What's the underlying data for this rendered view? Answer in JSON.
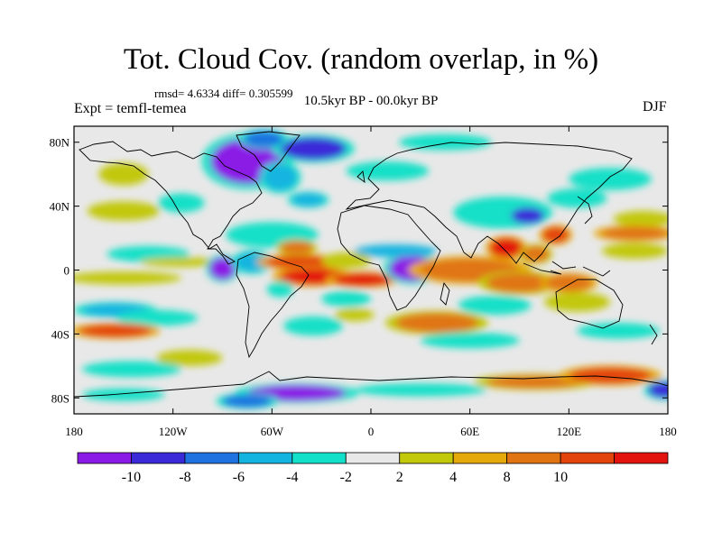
{
  "title": "Tot. Cloud Cov. (random overlap, in %)",
  "stats": "rmsd= 4.6334 diff= 0.305599",
  "experiment": "Expt = temfl-temea",
  "period": "10.5kyr BP - 00.0kyr BP",
  "season": "DJF",
  "x_axis": {
    "ticks": [
      -180,
      -120,
      -60,
      0,
      60,
      120,
      180
    ],
    "labels": [
      "180",
      "120W",
      "60W",
      "0",
      "60E",
      "120E",
      "180"
    ]
  },
  "y_axis": {
    "ticks": [
      80,
      40,
      0,
      -40,
      -80
    ],
    "labels": [
      "80N",
      "40N",
      "0",
      "40S",
      "80S"
    ],
    "range": [
      -90,
      90
    ]
  },
  "colorbar": {
    "colors": [
      "#8b1ae6",
      "#3b2ad8",
      "#1f72e0",
      "#13b4e0",
      "#13e0c8",
      "#e8e8e8",
      "#c2c80a",
      "#e6a90b",
      "#e07412",
      "#e3440c",
      "#e3130e"
    ],
    "labels": [
      "-10",
      "-8",
      "-6",
      "-4",
      "-2",
      "2",
      "4",
      "8",
      "10"
    ]
  },
  "field_anomalies": [
    {
      "lon": -75,
      "lat": 68,
      "rx": 22,
      "ry": 14,
      "v": -11
    },
    {
      "lon": -55,
      "lat": 58,
      "rx": 10,
      "ry": 8,
      "v": -6
    },
    {
      "lon": -35,
      "lat": 76,
      "rx": 20,
      "ry": 7,
      "v": -9
    },
    {
      "lon": -65,
      "lat": 82,
      "rx": 12,
      "ry": 5,
      "v": -8
    },
    {
      "lon": -38,
      "lat": 44,
      "rx": 10,
      "ry": 4,
      "v": -6
    },
    {
      "lon": -115,
      "lat": 42,
      "rx": 14,
      "ry": 6,
      "v": -4
    },
    {
      "lon": -150,
      "lat": 60,
      "rx": 15,
      "ry": 7,
      "v": 3
    },
    {
      "lon": -150,
      "lat": 37,
      "rx": 22,
      "ry": 6,
      "v": 3
    },
    {
      "lon": -135,
      "lat": 10,
      "rx": 25,
      "ry": 5,
      "v": -3
    },
    {
      "lon": -60,
      "lat": 22,
      "rx": 28,
      "ry": 8,
      "v": -3
    },
    {
      "lon": 10,
      "lat": 62,
      "rx": 25,
      "ry": 6,
      "v": -3
    },
    {
      "lon": 45,
      "lat": 80,
      "rx": 28,
      "ry": 5,
      "v": -3
    },
    {
      "lon": 80,
      "lat": 36,
      "rx": 30,
      "ry": 10,
      "v": -4
    },
    {
      "lon": 95,
      "lat": 34,
      "rx": 10,
      "ry": 5,
      "v": -9
    },
    {
      "lon": 125,
      "lat": 45,
      "rx": 18,
      "ry": 6,
      "v": -4
    },
    {
      "lon": 145,
      "lat": 57,
      "rx": 25,
      "ry": 7,
      "v": -3
    },
    {
      "lon": 165,
      "lat": 32,
      "rx": 18,
      "ry": 5,
      "v": 3
    },
    {
      "lon": 160,
      "lat": 12,
      "rx": 20,
      "ry": 5,
      "v": 3
    },
    {
      "lon": -150,
      "lat": -5,
      "rx": 35,
      "ry": 4,
      "v": 3
    },
    {
      "lon": -115,
      "lat": 5,
      "rx": 25,
      "ry": 3,
      "v": 3
    },
    {
      "lon": -90,
      "lat": 1,
      "rx": 8,
      "ry": 7,
      "v": -11
    },
    {
      "lon": -72,
      "lat": 5,
      "rx": 10,
      "ry": 6,
      "v": -6
    },
    {
      "lon": -42,
      "lat": 5,
      "rx": 22,
      "ry": 4,
      "v": 8
    },
    {
      "lon": -15,
      "lat": 6,
      "rx": 15,
      "ry": 5,
      "v": 3
    },
    {
      "lon": -45,
      "lat": 14,
      "rx": 10,
      "ry": 4,
      "v": 6
    },
    {
      "lon": -35,
      "lat": -4,
      "rx": 20,
      "ry": 5,
      "v": 10
    },
    {
      "lon": -5,
      "lat": -6,
      "rx": 18,
      "ry": 4,
      "v": 11
    },
    {
      "lon": 25,
      "lat": 1,
      "rx": 14,
      "ry": 8,
      "v": -11
    },
    {
      "lon": 15,
      "lat": 12,
      "rx": 25,
      "ry": 4,
      "v": -5
    },
    {
      "lon": -15,
      "lat": -18,
      "rx": 15,
      "ry": 5,
      "v": -4
    },
    {
      "lon": -10,
      "lat": -28,
      "rx": 12,
      "ry": 4,
      "v": 3
    },
    {
      "lon": -55,
      "lat": -12,
      "rx": 8,
      "ry": 5,
      "v": -4
    },
    {
      "lon": 60,
      "lat": 0,
      "rx": 30,
      "ry": 7,
      "v": 7
    },
    {
      "lon": 82,
      "lat": 14,
      "rx": 10,
      "ry": 6,
      "v": 10
    },
    {
      "lon": 100,
      "lat": 10,
      "rx": 8,
      "ry": 5,
      "v": 6
    },
    {
      "lon": 112,
      "lat": 22,
      "rx": 8,
      "ry": 5,
      "v": 9
    },
    {
      "lon": 160,
      "lat": 23,
      "rx": 20,
      "ry": 4,
      "v": 7
    },
    {
      "lon": 90,
      "lat": -8,
      "rx": 20,
      "ry": 6,
      "v": 6
    },
    {
      "lon": 120,
      "lat": -8,
      "rx": 14,
      "ry": 5,
      "v": 7
    },
    {
      "lon": 75,
      "lat": -22,
      "rx": 22,
      "ry": 6,
      "v": -4
    },
    {
      "lon": 125,
      "lat": -20,
      "rx": 20,
      "ry": 6,
      "v": 3
    },
    {
      "lon": 40,
      "lat": -33,
      "rx": 25,
      "ry": 6,
      "v": 6
    },
    {
      "lon": 60,
      "lat": -44,
      "rx": 30,
      "ry": 5,
      "v": -3
    },
    {
      "lon": 150,
      "lat": -38,
      "rx": 25,
      "ry": 5,
      "v": -3
    },
    {
      "lon": -155,
      "lat": -25,
      "rx": 20,
      "ry": 4,
      "v": -6
    },
    {
      "lon": -130,
      "lat": -30,
      "rx": 25,
      "ry": 5,
      "v": -3
    },
    {
      "lon": -155,
      "lat": -38,
      "rx": 22,
      "ry": 4,
      "v": 9
    },
    {
      "lon": -110,
      "lat": -55,
      "rx": 20,
      "ry": 5,
      "v": 3
    },
    {
      "lon": -35,
      "lat": -35,
      "rx": 18,
      "ry": 6,
      "v": -3
    },
    {
      "lon": -145,
      "lat": -62,
      "rx": 30,
      "ry": 5,
      "v": -4
    },
    {
      "lon": -150,
      "lat": -78,
      "rx": 25,
      "ry": 4,
      "v": -3
    },
    {
      "lon": -45,
      "lat": -77,
      "rx": 30,
      "ry": 5,
      "v": -11
    },
    {
      "lon": -75,
      "lat": -82,
      "rx": 15,
      "ry": 4,
      "v": -8
    },
    {
      "lon": 30,
      "lat": -75,
      "rx": 40,
      "ry": 4,
      "v": -3
    },
    {
      "lon": 100,
      "lat": -70,
      "rx": 30,
      "ry": 4,
      "v": 6
    },
    {
      "lon": 145,
      "lat": -66,
      "rx": 25,
      "ry": 5,
      "v": 8
    },
    {
      "lon": 178,
      "lat": -75,
      "rx": 10,
      "ry": 5,
      "v": -9
    }
  ]
}
